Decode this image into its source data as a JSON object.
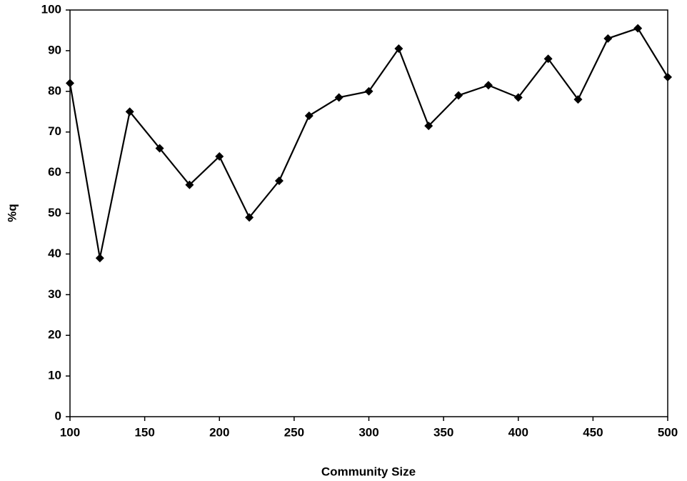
{
  "chart_data": {
    "type": "line",
    "x_label": "Community Size",
    "y_label": "%q",
    "x": [
      100,
      120,
      140,
      160,
      180,
      200,
      220,
      240,
      260,
      280,
      300,
      320,
      340,
      360,
      380,
      400,
      420,
      440,
      460,
      480,
      500
    ],
    "series": [
      {
        "color": "#000000",
        "values": [
          82,
          39,
          75,
          66,
          57,
          64,
          49,
          58,
          74,
          78.5,
          80,
          90.5,
          71.5,
          79,
          81.5,
          78.5,
          88,
          78,
          93,
          95.5,
          83.5
        ]
      }
    ],
    "xlim": [
      100,
      500
    ],
    "xticks": [
      100,
      150,
      200,
      250,
      300,
      350,
      400,
      450,
      500
    ],
    "ylim": [
      0,
      100
    ],
    "yticks": [
      0,
      10,
      20,
      30,
      40,
      50,
      60,
      70,
      80,
      90,
      100
    ],
    "grid": false,
    "marker": "diamond"
  }
}
